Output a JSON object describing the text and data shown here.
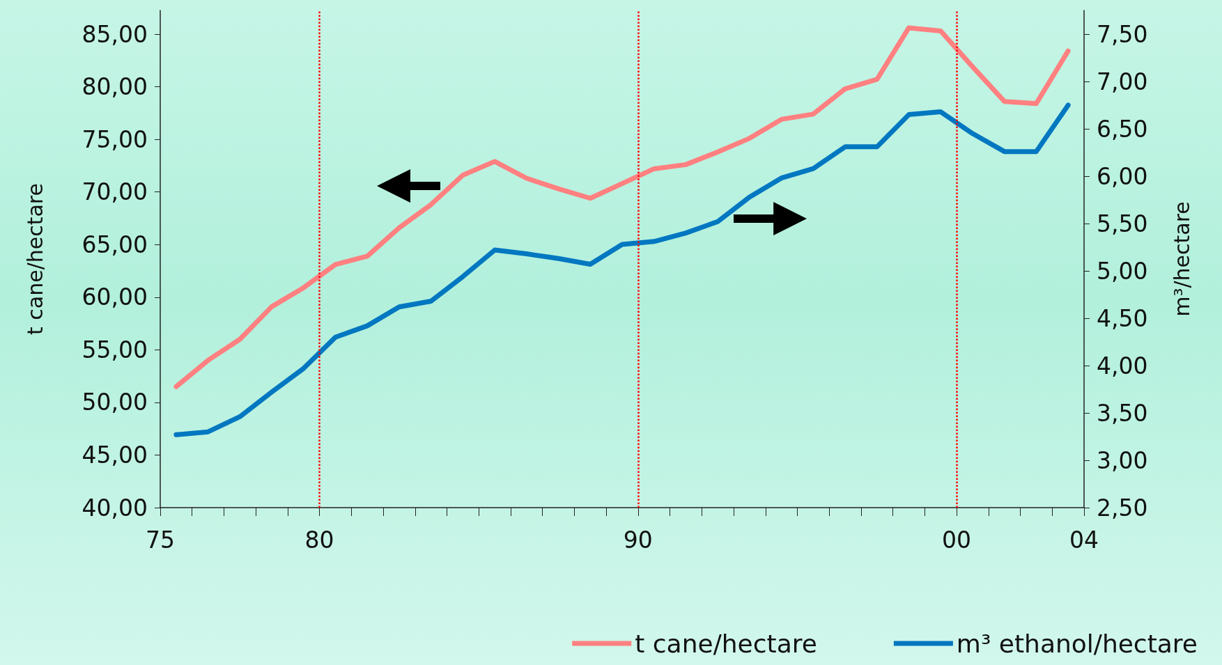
{
  "chart_data": {
    "type": "line",
    "ylabel": "t cane/hectare",
    "y2label": "m³/hectare",
    "x": [
      1975.5,
      1976.5,
      1977.5,
      1978.5,
      1979.5,
      1980.5,
      1981.5,
      1982.5,
      1983.5,
      1984.5,
      1985.5,
      1986.5,
      1987.5,
      1988.5,
      1989.5,
      1990.5,
      1991.5,
      1992.5,
      1993.5,
      1994.5,
      1995.5,
      1996.5,
      1997.5,
      1998.5,
      1999.5,
      2000.5,
      2001.5,
      2002.5,
      2003.5
    ],
    "series": [
      {
        "name": "t cane/hectare",
        "color": "#ff8080",
        "values": [
          51.5,
          54.0,
          56.0,
          59.1,
          60.9,
          63.1,
          63.9,
          66.6,
          68.8,
          71.6,
          72.9,
          71.3,
          70.3,
          69.4,
          70.8,
          72.2,
          72.6,
          73.8,
          75.1,
          76.9,
          77.4,
          79.8,
          80.7,
          85.6,
          85.3,
          81.9,
          78.6,
          78.4,
          83.4
        ]
      },
      {
        "name": "m³ ethanol/hectare",
        "color": "#0077c0",
        "axis": "y2",
        "values": [
          3.27,
          3.3,
          3.46,
          3.72,
          3.97,
          4.3,
          4.42,
          4.62,
          4.68,
          4.94,
          5.22,
          5.18,
          5.13,
          5.07,
          5.28,
          5.31,
          5.4,
          5.52,
          5.78,
          5.98,
          6.08,
          6.31,
          6.31,
          6.65,
          6.68,
          6.45,
          6.26,
          6.26,
          6.75
        ]
      }
    ],
    "xlim": [
      1975,
      2004
    ],
    "xticks": [
      {
        "value": 1975,
        "label": "75"
      },
      {
        "value": 1976,
        "label": null
      },
      {
        "value": 1977,
        "label": null
      },
      {
        "value": 1978,
        "label": null
      },
      {
        "value": 1979,
        "label": null
      },
      {
        "value": 1980,
        "label": "80"
      },
      {
        "value": 1981,
        "label": null
      },
      {
        "value": 1982,
        "label": null
      },
      {
        "value": 1983,
        "label": null
      },
      {
        "value": 1984,
        "label": null
      },
      {
        "value": 1985,
        "label": null
      },
      {
        "value": 1986,
        "label": null
      },
      {
        "value": 1987,
        "label": null
      },
      {
        "value": 1988,
        "label": null
      },
      {
        "value": 1989,
        "label": null
      },
      {
        "value": 1990,
        "label": "90"
      },
      {
        "value": 1991,
        "label": null
      },
      {
        "value": 1992,
        "label": null
      },
      {
        "value": 1993,
        "label": null
      },
      {
        "value": 1994,
        "label": null
      },
      {
        "value": 1995,
        "label": null
      },
      {
        "value": 1996,
        "label": null
      },
      {
        "value": 1997,
        "label": null
      },
      {
        "value": 1998,
        "label": null
      },
      {
        "value": 1999,
        "label": null
      },
      {
        "value": 2000,
        "label": "00"
      },
      {
        "value": 2001,
        "label": null
      },
      {
        "value": 2002,
        "label": null
      },
      {
        "value": 2003,
        "label": null
      },
      {
        "value": 2004,
        "label": "04"
      }
    ],
    "ylim": [
      40,
      87.25
    ],
    "yticks": [
      {
        "value": 40,
        "label": "40,00"
      },
      {
        "value": 45,
        "label": "45,00"
      },
      {
        "value": 50,
        "label": "50,00"
      },
      {
        "value": 55,
        "label": "55,00"
      },
      {
        "value": 60,
        "label": "60,00"
      },
      {
        "value": 65,
        "label": "65,00"
      },
      {
        "value": 70,
        "label": "70,00"
      },
      {
        "value": 75,
        "label": "75,00"
      },
      {
        "value": 80,
        "label": "80,00"
      },
      {
        "value": 85,
        "label": "85,00"
      }
    ],
    "y2lim": [
      2.5,
      7.75
    ],
    "y2ticks": [
      {
        "value": 2.5,
        "label": "2,50"
      },
      {
        "value": 3,
        "label": "3,00"
      },
      {
        "value": 3.5,
        "label": "3,50"
      },
      {
        "value": 4,
        "label": "4,00"
      },
      {
        "value": 4.5,
        "label": "4,50"
      },
      {
        "value": 5,
        "label": "5,00"
      },
      {
        "value": 5.5,
        "label": "5,50"
      },
      {
        "value": 6,
        "label": "6,00"
      },
      {
        "value": 6.5,
        "label": "6,50"
      },
      {
        "value": 7,
        "label": "7,00"
      },
      {
        "value": 7.5,
        "label": "7,50"
      }
    ],
    "ref_lines": [
      {
        "axis": "x",
        "value": 1980,
        "color": "#ff0000",
        "line_style": "dotted"
      },
      {
        "axis": "x",
        "value": 1990,
        "color": "#ff0000",
        "line_style": "dotted"
      },
      {
        "axis": "x",
        "value": 2000,
        "color": "#ff0000",
        "line_style": "dotted"
      }
    ],
    "grid": false,
    "legend": "bottom right",
    "marker": "none",
    "line_style": "solid"
  }
}
